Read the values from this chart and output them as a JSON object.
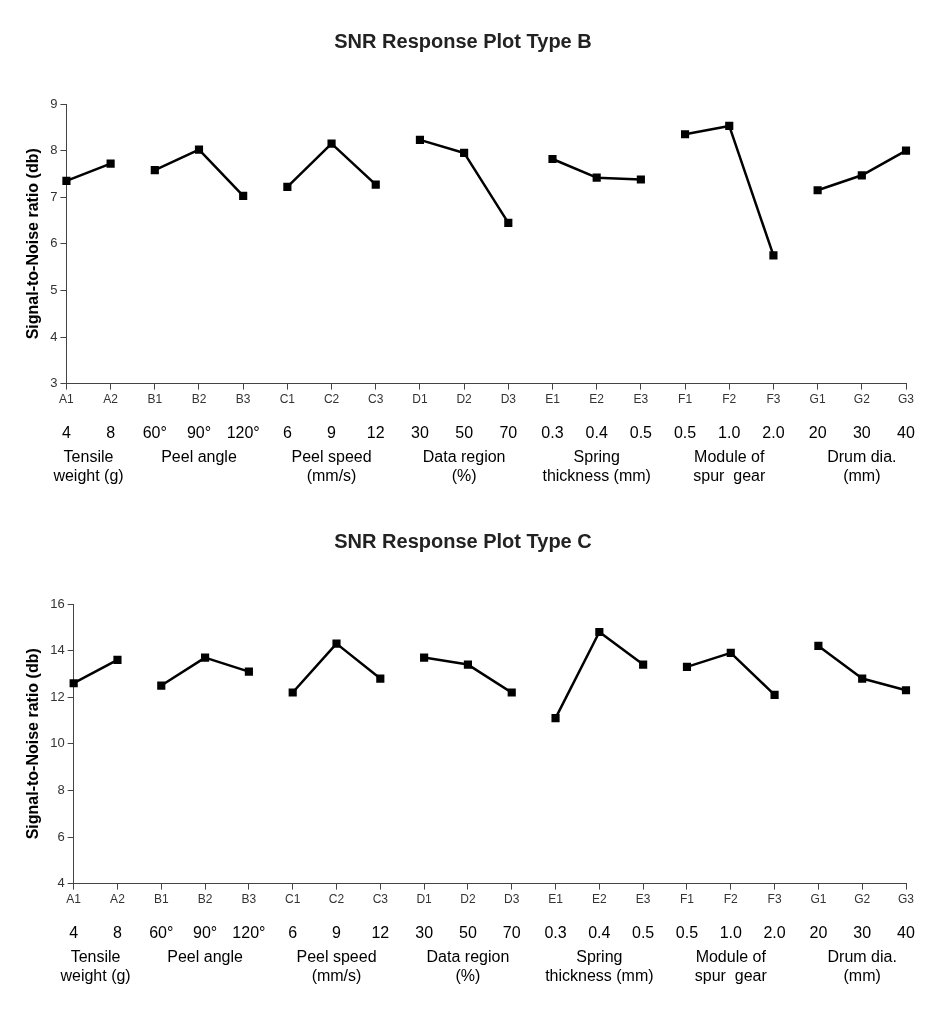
{
  "chart_data": [
    {
      "type": "line",
      "title": "SNR Response Plot Type B",
      "ylabel": "Signal-to-Noise ratio (db)",
      "categories": [
        "A1",
        "A2",
        "B1",
        "B2",
        "B3",
        "C1",
        "C2",
        "C3",
        "D1",
        "D2",
        "D3",
        "E1",
        "E2",
        "E3",
        "F1",
        "F2",
        "F3",
        "G1",
        "G2",
        "G3"
      ],
      "series": [
        {
          "color": "#000000",
          "values": [
            7.35,
            7.72,
            null,
            null,
            null,
            null,
            null,
            null,
            null,
            null,
            null,
            null,
            null,
            null,
            null,
            null,
            null,
            null,
            null,
            null
          ]
        },
        {
          "color": "#000000",
          "values": [
            null,
            null,
            7.58,
            8.02,
            7.03,
            null,
            null,
            null,
            null,
            null,
            null,
            null,
            null,
            null,
            null,
            null,
            null,
            null,
            null,
            null
          ]
        },
        {
          "color": "#000000",
          "values": [
            null,
            null,
            null,
            null,
            null,
            7.22,
            8.15,
            7.27,
            null,
            null,
            null,
            null,
            null,
            null,
            null,
            null,
            null,
            null,
            null,
            null
          ]
        },
        {
          "color": "#000000",
          "values": [
            null,
            null,
            null,
            null,
            null,
            null,
            null,
            null,
            8.23,
            7.95,
            6.45,
            null,
            null,
            null,
            null,
            null,
            null,
            null,
            null,
            null
          ]
        },
        {
          "color": "#000000",
          "values": [
            null,
            null,
            null,
            null,
            null,
            null,
            null,
            null,
            null,
            null,
            null,
            7.82,
            7.42,
            7.38,
            null,
            null,
            null,
            null,
            null,
            null
          ]
        },
        {
          "color": "#000000",
          "values": [
            null,
            null,
            null,
            null,
            null,
            null,
            null,
            null,
            null,
            null,
            null,
            null,
            null,
            null,
            8.35,
            8.53,
            5.75,
            null,
            null,
            null
          ]
        },
        {
          "color": "#000000",
          "values": [
            null,
            null,
            null,
            null,
            null,
            null,
            null,
            null,
            null,
            null,
            null,
            null,
            null,
            null,
            null,
            null,
            null,
            7.15,
            7.47,
            8.0
          ]
        }
      ],
      "ylim": [
        3,
        9
      ],
      "yticks": [
        3,
        4,
        5,
        6,
        7,
        8,
        9
      ],
      "grid": false,
      "legend": false,
      "marker": "square",
      "line_style": "solid",
      "annotations": [
        "4",
        "8",
        "60°",
        "90°",
        "120°",
        "6",
        "9",
        "12",
        "30",
        "50",
        "70",
        "0.3",
        "0.4",
        "0.5",
        "0.5",
        "1.0",
        "2.0",
        "20",
        "30",
        "40",
        "Tensile\nweight (g)",
        "Peel angle",
        "Peel speed\n(mm/s)",
        "Data region\n(%)",
        "Spring\nthickness (mm)",
        "Module of\nspur  gear",
        "Drum dia.\n(mm)"
      ]
    },
    {
      "type": "line",
      "title": "SNR Response Plot Type C",
      "ylabel": "Signal-to-Noise ratio (db)",
      "categories": [
        "A1",
        "A2",
        "B1",
        "B2",
        "B3",
        "C1",
        "C2",
        "C3",
        "D1",
        "D2",
        "D3",
        "E1",
        "E2",
        "E3",
        "F1",
        "F2",
        "F3",
        "G1",
        "G2",
        "G3"
      ],
      "series": [
        {
          "color": "#000000",
          "values": [
            12.6,
            13.6,
            null,
            null,
            null,
            null,
            null,
            null,
            null,
            null,
            null,
            null,
            null,
            null,
            null,
            null,
            null,
            null,
            null,
            null
          ]
        },
        {
          "color": "#000000",
          "values": [
            null,
            null,
            12.5,
            13.7,
            13.1,
            null,
            null,
            null,
            null,
            null,
            null,
            null,
            null,
            null,
            null,
            null,
            null,
            null,
            null,
            null
          ]
        },
        {
          "color": "#000000",
          "values": [
            null,
            null,
            null,
            null,
            null,
            12.2,
            14.3,
            12.8,
            null,
            null,
            null,
            null,
            null,
            null,
            null,
            null,
            null,
            null,
            null,
            null
          ]
        },
        {
          "color": "#000000",
          "values": [
            null,
            null,
            null,
            null,
            null,
            null,
            null,
            null,
            13.7,
            13.4,
            12.2,
            null,
            null,
            null,
            null,
            null,
            null,
            null,
            null,
            null
          ]
        },
        {
          "color": "#000000",
          "values": [
            null,
            null,
            null,
            null,
            null,
            null,
            null,
            null,
            null,
            null,
            null,
            11.1,
            14.8,
            13.4,
            null,
            null,
            null,
            null,
            null,
            null
          ]
        },
        {
          "color": "#000000",
          "values": [
            null,
            null,
            null,
            null,
            null,
            null,
            null,
            null,
            null,
            null,
            null,
            null,
            null,
            null,
            13.3,
            13.9,
            12.1,
            null,
            null,
            null
          ]
        },
        {
          "color": "#000000",
          "values": [
            null,
            null,
            null,
            null,
            null,
            null,
            null,
            null,
            null,
            null,
            null,
            null,
            null,
            null,
            null,
            null,
            null,
            14.2,
            12.8,
            12.3
          ]
        }
      ],
      "ylim": [
        4,
        16
      ],
      "yticks": [
        4,
        6,
        8,
        10,
        12,
        14,
        16
      ],
      "grid": false,
      "legend": false,
      "marker": "square",
      "line_style": "solid",
      "annotations": [
        "4",
        "8",
        "60°",
        "90°",
        "120°",
        "6",
        "9",
        "12",
        "30",
        "50",
        "70",
        "0.3",
        "0.4",
        "0.5",
        "0.5",
        "1.0",
        "2.0",
        "20",
        "30",
        "40",
        "Tensile\nweight (g)",
        "Peel angle",
        "Peel speed\n(mm/s)",
        "Data region\n(%)",
        "Spring\nthickness (mm)",
        "Module of\nspur  gear",
        "Drum dia.\n(mm)"
      ]
    }
  ]
}
